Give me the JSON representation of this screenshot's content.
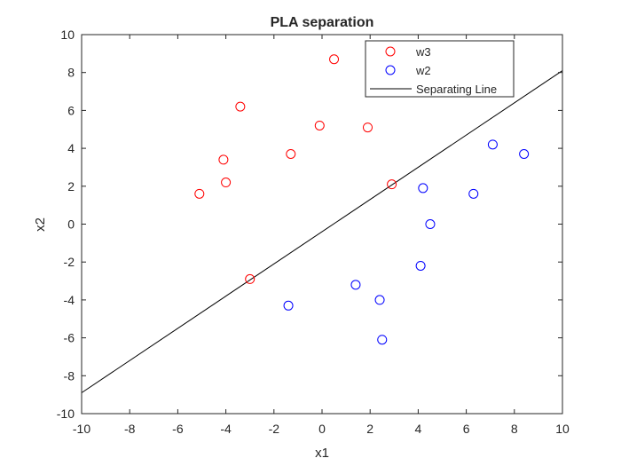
{
  "chart_data": {
    "type": "scatter",
    "title": "PLA separation",
    "xlabel": "x1",
    "ylabel": "x2",
    "xlim": [
      -10,
      10
    ],
    "ylim": [
      -10,
      10
    ],
    "xticks": [
      -10,
      -8,
      -6,
      -4,
      -2,
      0,
      2,
      4,
      6,
      8,
      10
    ],
    "yticks": [
      -10,
      -8,
      -6,
      -4,
      -2,
      0,
      2,
      4,
      6,
      8,
      10
    ],
    "grid": false,
    "legend_position": "top-right",
    "series": [
      {
        "name": "w3",
        "marker": "circle-open",
        "color": "#ff0000",
        "points": [
          [
            0.5,
            8.7
          ],
          [
            -3.4,
            6.2
          ],
          [
            -0.1,
            5.2
          ],
          [
            1.9,
            5.1
          ],
          [
            -1.3,
            3.7
          ],
          [
            -4.1,
            3.4
          ],
          [
            -4.0,
            2.2
          ],
          [
            -5.1,
            1.6
          ],
          [
            2.9,
            2.1
          ],
          [
            -3.0,
            -2.9
          ]
        ]
      },
      {
        "name": "w2",
        "marker": "circle-open",
        "color": "#0000ff",
        "points": [
          [
            7.1,
            4.2
          ],
          [
            8.4,
            3.7
          ],
          [
            4.2,
            1.9
          ],
          [
            6.3,
            1.6
          ],
          [
            4.5,
            0.0
          ],
          [
            4.1,
            -2.2
          ],
          [
            1.4,
            -3.2
          ],
          [
            2.4,
            -4.0
          ],
          [
            -1.4,
            -4.3
          ],
          [
            2.5,
            -6.1
          ]
        ]
      }
    ],
    "line": {
      "name": "Separating Line",
      "color": "#000000",
      "points": [
        [
          -10,
          -8.9
        ],
        [
          10,
          8.1
        ]
      ]
    }
  }
}
